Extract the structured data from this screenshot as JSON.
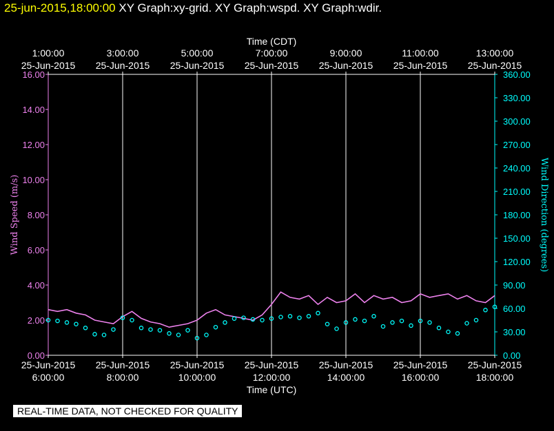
{
  "header": {
    "timestamp": "25-jun-2015,18:00:00",
    "titles": "XY Graph:xy-grid.  XY Graph:wspd.  XY Graph:wdir."
  },
  "footer": {
    "quality_note": "REAL-TIME DATA, NOT CHECKED FOR QUALITY"
  },
  "colors": {
    "background": "#000000",
    "grid": "#ffffff",
    "wind_speed": "#ee82ee",
    "wind_direction": "#00ffff",
    "header_timestamp": "#ffff00"
  },
  "chart_data": {
    "type": "line",
    "top_axis": {
      "title": "Time (CDT)",
      "ticks": [
        {
          "time": "1:00:00",
          "date": "25-Jun-2015"
        },
        {
          "time": "3:00:00",
          "date": "25-Jun-2015"
        },
        {
          "time": "5:00:00",
          "date": "25-Jun-2015"
        },
        {
          "time": "7:00:00",
          "date": "25-Jun-2015"
        },
        {
          "time": "9:00:00",
          "date": "25-Jun-2015"
        },
        {
          "time": "11:00:00",
          "date": "25-Jun-2015"
        },
        {
          "time": "13:00:00",
          "date": "25-Jun-2015"
        }
      ]
    },
    "bottom_axis": {
      "title": "Time (UTC)",
      "range_hours": [
        6,
        18
      ],
      "ticks": [
        {
          "date": "25-Jun-2015",
          "time": "6:00:00",
          "hour": 6
        },
        {
          "date": "25-Jun-2015",
          "time": "8:00:00",
          "hour": 8
        },
        {
          "date": "25-Jun-2015",
          "time": "10:00:00",
          "hour": 10
        },
        {
          "date": "25-Jun-2015",
          "time": "12:00:00",
          "hour": 12
        },
        {
          "date": "25-Jun-2015",
          "time": "14:00:00",
          "hour": 14
        },
        {
          "date": "25-Jun-2015",
          "time": "16:00:00",
          "hour": 16
        },
        {
          "date": "25-Jun-2015",
          "time": "18:00:00",
          "hour": 18
        }
      ]
    },
    "left_axis": {
      "label": "Wind Speed (m/s)",
      "ylim": [
        0,
        16
      ],
      "ticks": [
        "0.00",
        "2.00",
        "4.00",
        "6.00",
        "8.00",
        "10.00",
        "12.00",
        "14.00",
        "16.00"
      ]
    },
    "right_axis": {
      "label": "Wind Direction (degrees)",
      "ylim": [
        0,
        360
      ],
      "ticks": [
        "0.00",
        "30.00",
        "60.00",
        "90.00",
        "120.00",
        "150.00",
        "180.00",
        "210.00",
        "240.00",
        "270.00",
        "300.00",
        "330.00",
        "360.00"
      ]
    },
    "grid": "vertical",
    "series": [
      {
        "type": "line",
        "axis": "left",
        "x_hours": [
          6.0,
          6.25,
          6.5,
          6.75,
          7.0,
          7.25,
          7.5,
          7.75,
          8.0,
          8.25,
          8.5,
          8.75,
          9.0,
          9.25,
          9.5,
          9.75,
          10.0,
          10.25,
          10.5,
          10.75,
          11.0,
          11.25,
          11.5,
          11.75,
          12.0,
          12.25,
          12.5,
          12.75,
          13.0,
          13.25,
          13.5,
          13.75,
          14.0,
          14.25,
          14.5,
          14.75,
          15.0,
          15.25,
          15.5,
          15.75,
          16.0,
          16.25,
          16.5,
          16.75,
          17.0,
          17.25,
          17.5,
          17.75,
          18.0
        ],
        "values": [
          2.6,
          2.5,
          2.6,
          2.4,
          2.3,
          2.0,
          1.9,
          1.8,
          2.2,
          2.5,
          2.1,
          1.9,
          1.8,
          1.6,
          1.7,
          1.8,
          2.0,
          2.4,
          2.6,
          2.3,
          2.2,
          2.1,
          2.0,
          2.3,
          2.9,
          3.6,
          3.3,
          3.2,
          3.4,
          2.9,
          3.3,
          3.0,
          3.1,
          3.5,
          3.0,
          3.4,
          3.2,
          3.3,
          3.0,
          3.1,
          3.5,
          3.3,
          3.4,
          3.5,
          3.2,
          3.4,
          3.1,
          3.0,
          3.4
        ]
      },
      {
        "type": "scatter",
        "axis": "right",
        "x_hours": [
          6.0,
          6.25,
          6.5,
          6.75,
          7.0,
          7.25,
          7.5,
          7.75,
          8.0,
          8.25,
          8.5,
          8.75,
          9.0,
          9.25,
          9.5,
          9.75,
          10.0,
          10.25,
          10.5,
          10.75,
          11.0,
          11.25,
          11.5,
          11.75,
          12.0,
          12.25,
          12.5,
          12.75,
          13.0,
          13.25,
          13.5,
          13.75,
          14.0,
          14.25,
          14.5,
          14.75,
          15.0,
          15.25,
          15.5,
          15.75,
          16.0,
          16.25,
          16.5,
          16.75,
          17.0,
          17.25,
          17.5,
          17.75,
          18.0
        ],
        "values": [
          45,
          44,
          42,
          40,
          35,
          27,
          26,
          33,
          48,
          45,
          35,
          33,
          32,
          28,
          26,
          32,
          22,
          26,
          36,
          42,
          47,
          48,
          46,
          45,
          47,
          49,
          50,
          48,
          50,
          54,
          40,
          34,
          42,
          46,
          44,
          50,
          37,
          42,
          44,
          38,
          44,
          42,
          35,
          30,
          28,
          41,
          45,
          58,
          62
        ]
      }
    ]
  }
}
